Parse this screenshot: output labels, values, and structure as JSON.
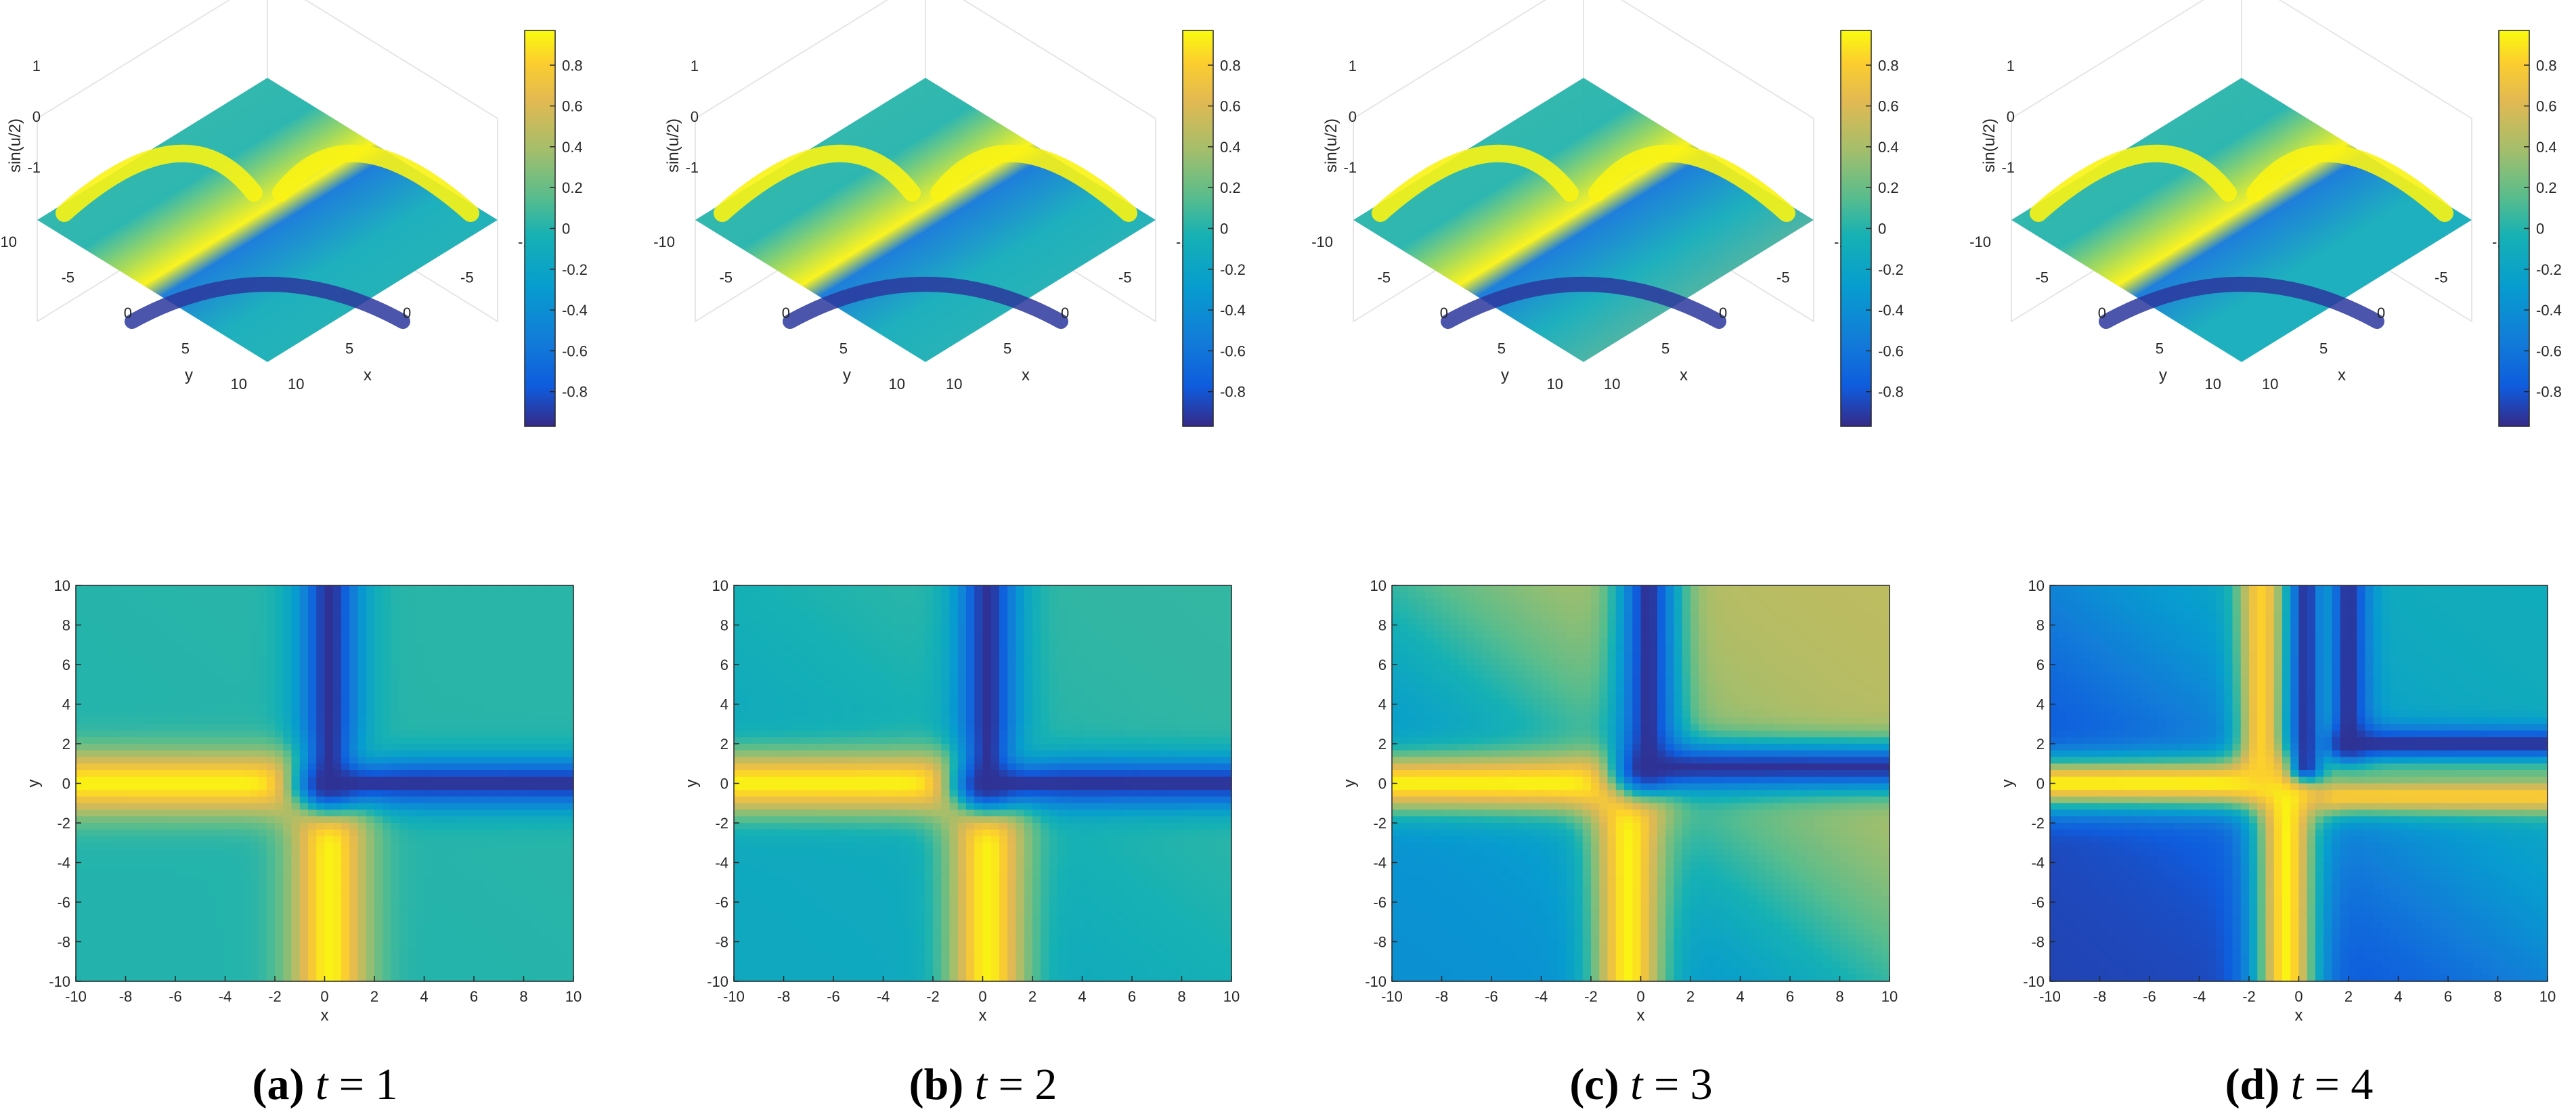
{
  "chart_data": [
    {
      "panel": "a",
      "t": 1,
      "type": "heatmap",
      "surface": {
        "zlabel": "sin(u/2)",
        "xlabel": "x",
        "ylabel": "y",
        "xticks": [
          "-10",
          "-5",
          "0",
          "5",
          "10"
        ],
        "yticks": [
          "-10",
          "-5",
          "0",
          "5",
          "10"
        ],
        "zticks": [
          "-1",
          "0",
          "1"
        ],
        "xlim": [
          -10,
          10
        ],
        "ylim": [
          -10,
          10
        ],
        "zlim": [
          -1,
          1
        ],
        "grid": true
      },
      "colorbar": {
        "ticks": [
          "0.8",
          "0.6",
          "0.4",
          "0.2",
          "0",
          "-0.2",
          "-0.4",
          "-0.6",
          "-0.8"
        ],
        "range": [
          -0.97,
          0.97
        ]
      },
      "map": {
        "xlabel": "x",
        "ylabel": "y",
        "xticks": [
          "-10",
          "-8",
          "-6",
          "-4",
          "-2",
          "0",
          "2",
          "4",
          "6",
          "8",
          "10"
        ],
        "yticks": [
          "10",
          "8",
          "6",
          "4",
          "2",
          "0",
          "-2",
          "-4",
          "-6",
          "-8",
          "-10"
        ],
        "xlim": [
          -10,
          10
        ],
        "ylim": [
          -10,
          10
        ],
        "features": [
          {
            "kind": "crest",
            "value": 0.97,
            "x": [
              -10,
              0.2
            ],
            "y": 0,
            "width": 1.6
          },
          {
            "kind": "crest",
            "value": 0.97,
            "x": 0.2,
            "y": [
              -10,
              0
            ],
            "width": 1.6
          },
          {
            "kind": "trough",
            "value": -0.97,
            "x": [
              0.2,
              10
            ],
            "y": 0,
            "width": 1.3
          },
          {
            "kind": "trough",
            "value": -0.97,
            "x": 0.2,
            "y": [
              0,
              10
            ],
            "width": 1.3
          }
        ],
        "background": {
          "lower_left": 0.0,
          "upper_right": 0.02
        }
      },
      "caption": {
        "letter": "(a)",
        "var": "t",
        "eq": " = 1"
      }
    },
    {
      "panel": "b",
      "t": 2,
      "type": "heatmap",
      "surface": {
        "zlabel": "sin(u/2)",
        "xlabel": "x",
        "ylabel": "y",
        "xticks": [
          "-10",
          "-5",
          "0",
          "5",
          "10"
        ],
        "yticks": [
          "-10",
          "-5",
          "0",
          "5",
          "10"
        ],
        "zticks": [
          "-1",
          "0",
          "1"
        ],
        "xlim": [
          -10,
          10
        ],
        "ylim": [
          -10,
          10
        ],
        "zlim": [
          -1,
          1
        ],
        "grid": true
      },
      "colorbar": {
        "ticks": [
          "0.8",
          "0.6",
          "0.4",
          "0.2",
          "0",
          "-0.2",
          "-0.4",
          "-0.6",
          "-0.8"
        ],
        "range": [
          -0.97,
          0.97
        ]
      },
      "map": {
        "xlabel": "x",
        "ylabel": "y",
        "xticks": [
          "-10",
          "-8",
          "-6",
          "-4",
          "-2",
          "0",
          "2",
          "4",
          "6",
          "8",
          "10"
        ],
        "yticks": [
          "10",
          "8",
          "6",
          "4",
          "2",
          "0",
          "-2",
          "-4",
          "-6",
          "-8",
          "-10"
        ],
        "xlim": [
          -10,
          10
        ],
        "ylim": [
          -10,
          10
        ],
        "features": [
          {
            "kind": "crest",
            "value": 0.97,
            "x": [
              -10,
              0.2
            ],
            "y": 0,
            "width": 1.6
          },
          {
            "kind": "crest",
            "value": 0.97,
            "x": 0.2,
            "y": [
              -10,
              0
            ],
            "width": 1.6
          },
          {
            "kind": "trough",
            "value": -0.97,
            "x": [
              0.2,
              10
            ],
            "y": 0,
            "width": 1.3
          },
          {
            "kind": "trough",
            "value": -0.97,
            "x": 0.2,
            "y": [
              0,
              10
            ],
            "width": 1.3
          }
        ],
        "background": {
          "lower_left": -0.15,
          "upper_right": 0.05
        }
      },
      "caption": {
        "letter": "(b)",
        "var": "t",
        "eq": " = 2"
      }
    },
    {
      "panel": "c",
      "t": 3,
      "type": "heatmap",
      "surface": {
        "zlabel": "sin(u/2)",
        "xlabel": "x",
        "ylabel": "y",
        "xticks": [
          "-10",
          "-5",
          "0",
          "5",
          "10"
        ],
        "yticks": [
          "-10",
          "-5",
          "0",
          "5",
          "10"
        ],
        "zticks": [
          "-1",
          "0",
          "1"
        ],
        "xlim": [
          -10,
          10
        ],
        "ylim": [
          -10,
          10
        ],
        "zlim": [
          -1,
          1
        ],
        "grid": true
      },
      "colorbar": {
        "ticks": [
          "0.8",
          "0.6",
          "0.4",
          "0.2",
          "0",
          "-0.2",
          "-0.4",
          "-0.6",
          "-0.8"
        ],
        "range": [
          -0.97,
          0.97
        ]
      },
      "map": {
        "xlabel": "x",
        "ylabel": "y",
        "xticks": [
          "-10",
          "-8",
          "-6",
          "-4",
          "-2",
          "0",
          "2",
          "4",
          "6",
          "8",
          "10"
        ],
        "yticks": [
          "10",
          "8",
          "6",
          "4",
          "2",
          "0",
          "-2",
          "-4",
          "-6",
          "-8",
          "-10"
        ],
        "xlim": [
          -10,
          10
        ],
        "ylim": [
          -10,
          10
        ],
        "features": [
          {
            "kind": "crest",
            "value": 0.97,
            "x": [
              -10,
              0
            ],
            "y": 0,
            "width": 1.5
          },
          {
            "kind": "crest",
            "value": 0.97,
            "x": -0.5,
            "y": [
              -10,
              0
            ],
            "width": 1.5
          },
          {
            "kind": "trough",
            "value": -0.97,
            "x": [
              0.3,
              10
            ],
            "y": 0.8,
            "width": 1.3
          },
          {
            "kind": "trough",
            "value": -0.97,
            "x": 0.3,
            "y": [
              0.8,
              10
            ],
            "width": 1.3
          }
        ],
        "background": {
          "lower_left": -0.4,
          "upper_right": 0.5
        }
      },
      "caption": {
        "letter": "(c)",
        "var": "t",
        "eq": " = 3"
      }
    },
    {
      "panel": "d",
      "t": 4,
      "type": "heatmap",
      "surface": {
        "zlabel": "sin(u/2)",
        "xlabel": "x",
        "ylabel": "y",
        "xticks": [
          "-10",
          "-5",
          "0",
          "5",
          "10"
        ],
        "yticks": [
          "-10",
          "-5",
          "0",
          "5",
          "10"
        ],
        "zticks": [
          "-1",
          "0",
          "1"
        ],
        "xlim": [
          -10,
          10
        ],
        "ylim": [
          -10,
          10
        ],
        "zlim": [
          -1,
          1
        ],
        "grid": true
      },
      "colorbar": {
        "ticks": [
          "0.8",
          "0.6",
          "0.4",
          "0.2",
          "0",
          "-0.2",
          "-0.4",
          "-0.6",
          "-0.8"
        ],
        "range": [
          -0.97,
          0.97
        ]
      },
      "map": {
        "xlabel": "x",
        "ylabel": "y",
        "xticks": [
          "-10",
          "-8",
          "-6",
          "-4",
          "-2",
          "0",
          "2",
          "4",
          "6",
          "8",
          "10"
        ],
        "yticks": [
          "10",
          "8",
          "6",
          "4",
          "2",
          "0",
          "-2",
          "-4",
          "-6",
          "-8",
          "-10"
        ],
        "xlim": [
          -10,
          10
        ],
        "ylim": [
          -10,
          10
        ],
        "features": [
          {
            "kind": "crest",
            "value": 0.97,
            "x": [
              -10,
              0
            ],
            "y": 0,
            "width": 1.3
          },
          {
            "kind": "crest",
            "value": 0.97,
            "x": -0.5,
            "y": [
              -10,
              0
            ],
            "width": 1.3
          },
          {
            "kind": "crest",
            "value": 0.85,
            "x": -1.5,
            "y": [
              0.5,
              10
            ],
            "width": 1.0
          },
          {
            "kind": "crest",
            "value": 0.85,
            "x": [
              1.5,
              10
            ],
            "y": -0.6,
            "width": 1.0
          },
          {
            "kind": "crest",
            "value": 0.3,
            "x": 1.0,
            "y": [
              0.8,
              10
            ],
            "width": 0.8
          },
          {
            "kind": "crest",
            "value": 0.3,
            "x": [
              1.0,
              10
            ],
            "y": 0.8,
            "width": 0.8
          },
          {
            "kind": "trough",
            "value": -0.97,
            "x": [
              2.0,
              10
            ],
            "y": 2.0,
            "width": 0.9
          },
          {
            "kind": "trough",
            "value": -0.97,
            "x": 2.0,
            "y": [
              2.0,
              10
            ],
            "width": 0.9
          },
          {
            "kind": "trough",
            "value": -0.97,
            "x": 0.3,
            "y": [
              0.8,
              10
            ],
            "width": 0.7
          }
        ],
        "background": {
          "lower_left": -0.9,
          "upper_right": -0.1
        }
      },
      "caption": {
        "letter": "(d)",
        "var": "t",
        "eq": " = 4"
      }
    }
  ]
}
